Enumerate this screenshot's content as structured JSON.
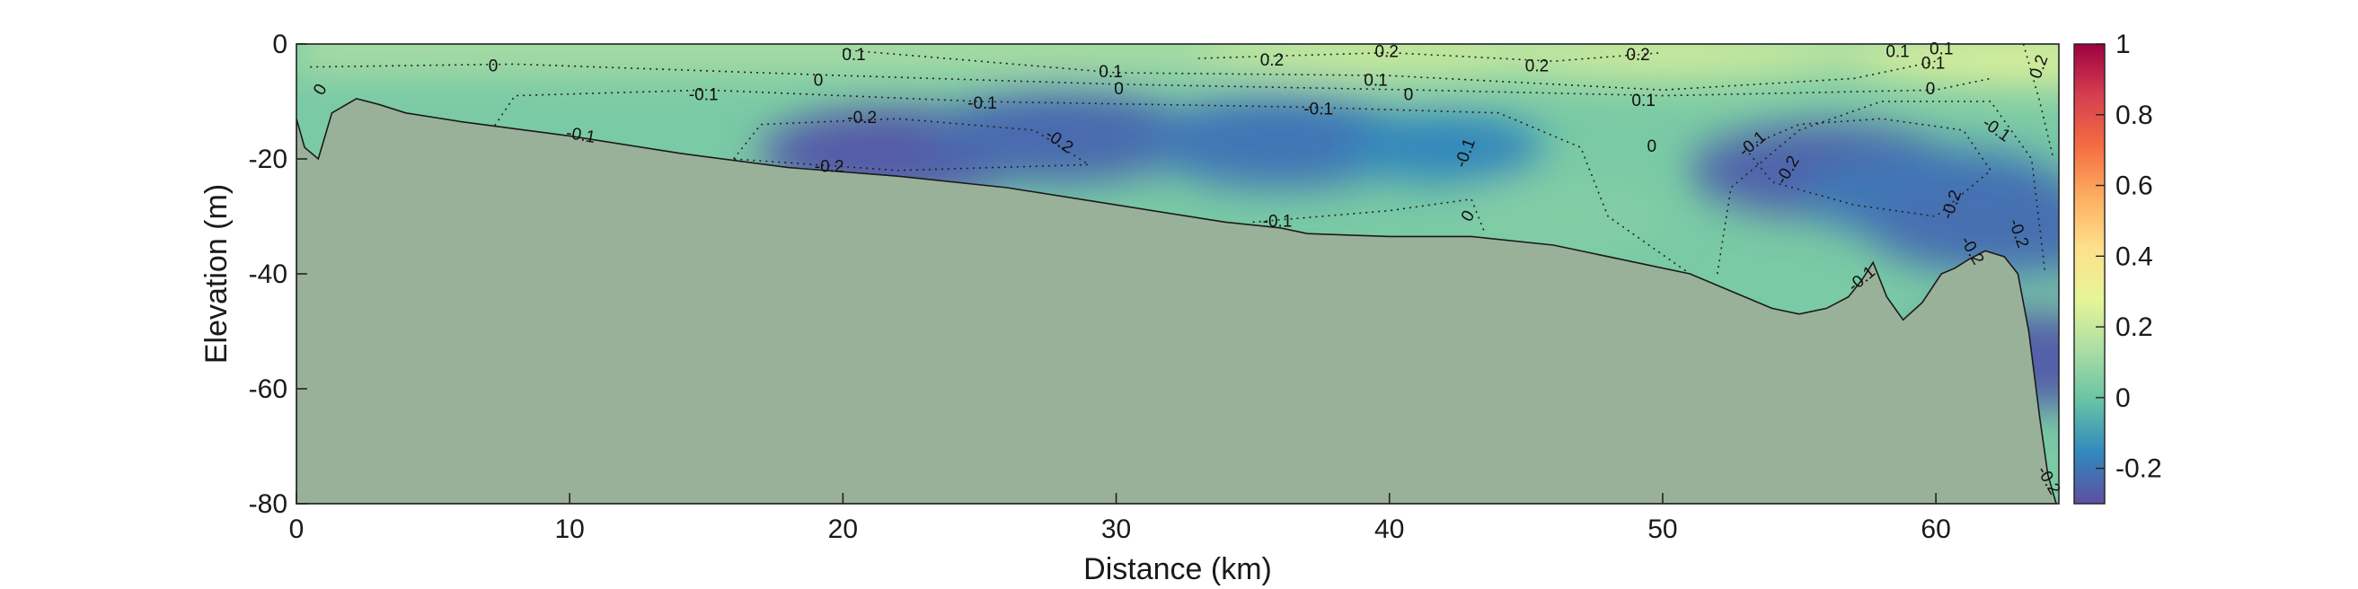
{
  "chart_data": {
    "type": "heatmap",
    "title": "",
    "xlabel": "Distance (km)",
    "ylabel": "Elevation (m)",
    "xlim": [
      0,
      64.5
    ],
    "ylim": [
      -80,
      0
    ],
    "xticks": [
      "0",
      "10",
      "20",
      "30",
      "40",
      "50",
      "60"
    ],
    "yticks": [
      "0",
      "-20",
      "-40",
      "-60",
      "-80"
    ],
    "colorbar": {
      "clim": [
        -0.3,
        1
      ],
      "ticks": [
        "1",
        "0.8",
        "0.6",
        "0.4",
        "0.2",
        "0",
        "-0.2"
      ],
      "colormap": [
        "#5e4fa2",
        "#3288bd",
        "#66c2a5",
        "#abdda4",
        "#e6f598",
        "#fee08b",
        "#fdae61",
        "#f46d43",
        "#d53e4f",
        "#9e0142"
      ]
    },
    "bathymetry": {
      "x": [
        0,
        0.3,
        0.8,
        1.3,
        2.2,
        3,
        4,
        6,
        10,
        14,
        18,
        22,
        26,
        30,
        34,
        36,
        37,
        40,
        43,
        46,
        49,
        51,
        53,
        54,
        55,
        56,
        56.8,
        57.3,
        57.7,
        58.2,
        58.8,
        59.5,
        60.2,
        60.7,
        61.2,
        61.8,
        62.5,
        63,
        63.4,
        63.8,
        64.1,
        64.4,
        64.5
      ],
      "y": [
        -13,
        -18,
        -20,
        -12,
        -9.5,
        -10.5,
        -12,
        -13.5,
        -16,
        -19,
        -21.5,
        -23,
        -25,
        -28,
        -31,
        -32,
        -33,
        -33.5,
        -33.5,
        -35,
        -38,
        -40,
        -44,
        -46,
        -47,
        -46,
        -44,
        -41,
        -38,
        -44,
        -48,
        -45,
        -40,
        -39,
        -37.5,
        -36,
        -37,
        -40,
        -50,
        -65,
        -75,
        -80,
        -80
      ],
      "fill": "#9ab199"
    },
    "anomalies": [
      {
        "x": 22,
        "y": -19,
        "value": -0.27
      },
      {
        "x": 28,
        "y": -16,
        "value": -0.23
      },
      {
        "x": 36,
        "y": -17,
        "value": -0.2
      },
      {
        "x": 42,
        "y": -18,
        "value": -0.16
      },
      {
        "x": 56,
        "y": -22,
        "value": -0.25
      },
      {
        "x": 60,
        "y": -26,
        "value": -0.2
      },
      {
        "x": 62.5,
        "y": -32,
        "value": -0.22
      },
      {
        "x": 63.5,
        "y": -55,
        "value": -0.26
      },
      {
        "x": 40,
        "y": -1.5,
        "value": 0.22
      },
      {
        "x": 50,
        "y": -2,
        "value": 0.22
      },
      {
        "x": 63.5,
        "y": -3,
        "value": 0.25
      },
      {
        "x": 46.5,
        "y": -30,
        "value": 0.05
      }
    ],
    "contour_labels": [
      {
        "x": 0.9,
        "y": -8,
        "text": "0",
        "angle": -60
      },
      {
        "x": 7.2,
        "y": -4,
        "text": "0",
        "angle": 0
      },
      {
        "x": 10.4,
        "y": -16,
        "text": "-0.1",
        "angle": 10
      },
      {
        "x": 14.9,
        "y": -9,
        "text": "-0.1",
        "angle": 0
      },
      {
        "x": 20.4,
        "y": -2,
        "text": "0.1",
        "angle": 0
      },
      {
        "x": 19.1,
        "y": -6.5,
        "text": "0",
        "angle": 0
      },
      {
        "x": 20.7,
        "y": -13,
        "text": "-0.2",
        "angle": 0
      },
      {
        "x": 19.5,
        "y": -21.5,
        "text": "-0.2",
        "angle": 0
      },
      {
        "x": 27.9,
        "y": -17,
        "text": "-0.2",
        "angle": 35
      },
      {
        "x": 29.8,
        "y": -5,
        "text": "0.1",
        "angle": 0
      },
      {
        "x": 30.1,
        "y": -8,
        "text": "0",
        "angle": 0
      },
      {
        "x": 25.1,
        "y": -10.5,
        "text": "-0.1",
        "angle": 0
      },
      {
        "x": 35.7,
        "y": -3,
        "text": "0.2",
        "angle": 0
      },
      {
        "x": 37.4,
        "y": -11.5,
        "text": "-0.1",
        "angle": 0
      },
      {
        "x": 39.9,
        "y": -1.5,
        "text": "0.2",
        "angle": 0
      },
      {
        "x": 39.5,
        "y": -6.5,
        "text": "0.1",
        "angle": 0
      },
      {
        "x": 40.7,
        "y": -9,
        "text": "0",
        "angle": 0
      },
      {
        "x": 35.9,
        "y": -31,
        "text": "-0.1",
        "angle": 0
      },
      {
        "x": 42.8,
        "y": -19,
        "text": "-0.1",
        "angle": -70
      },
      {
        "x": 42.9,
        "y": -30,
        "text": "0",
        "angle": -60
      },
      {
        "x": 45.4,
        "y": -4,
        "text": "0.2",
        "angle": 0
      },
      {
        "x": 49.1,
        "y": -2,
        "text": "0.2",
        "angle": 0
      },
      {
        "x": 49.3,
        "y": -10,
        "text": "0.1",
        "angle": 0
      },
      {
        "x": 49.6,
        "y": -18,
        "text": "0",
        "angle": 0
      },
      {
        "x": 53.3,
        "y": -17.5,
        "text": "-0.1",
        "angle": -40
      },
      {
        "x": 54.6,
        "y": -22,
        "text": "-0.2",
        "angle": -60
      },
      {
        "x": 57.3,
        "y": -41,
        "text": "-0.1",
        "angle": -40
      },
      {
        "x": 58.6,
        "y": -1.5,
        "text": "0.1",
        "angle": 0
      },
      {
        "x": 60.2,
        "y": -1,
        "text": "0.1",
        "angle": 0
      },
      {
        "x": 59.9,
        "y": -3.5,
        "text": "0.1",
        "angle": 0
      },
      {
        "x": 59.8,
        "y": -8,
        "text": "0",
        "angle": 0
      },
      {
        "x": 62.2,
        "y": -15,
        "text": "-0.1",
        "angle": 35
      },
      {
        "x": 60.6,
        "y": -28,
        "text": "-0.2",
        "angle": -70
      },
      {
        "x": 61.3,
        "y": -36,
        "text": "-0.2",
        "angle": 60
      },
      {
        "x": 63.0,
        "y": -33,
        "text": "-0.2",
        "angle": 70
      },
      {
        "x": 63.8,
        "y": -4,
        "text": "0.2",
        "angle": -70
      },
      {
        "x": 64.1,
        "y": -76,
        "text": "-0.2",
        "angle": 60
      }
    ]
  }
}
